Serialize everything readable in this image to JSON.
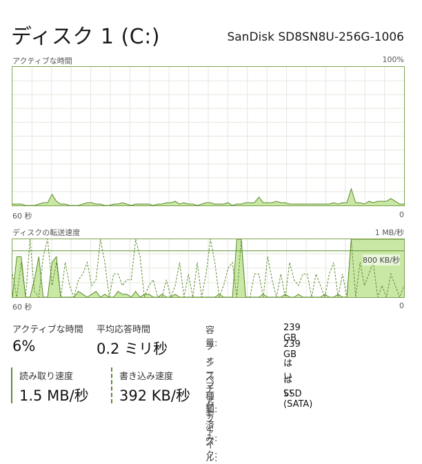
{
  "header": {
    "title": "ディスク 1 (C:)",
    "model": "SanDisk SD8SN8U-256G-1006"
  },
  "active_time_chart": {
    "label": "アクティブな時間",
    "max_label": "100%",
    "time_label": "60 秒",
    "min_label": "0",
    "series": [
      1,
      1,
      1,
      0,
      0,
      0,
      1,
      2,
      2,
      8,
      3,
      1,
      1,
      0,
      0,
      0,
      1,
      2,
      2,
      1,
      1,
      0,
      0,
      1,
      1,
      2,
      1,
      0,
      1,
      1,
      1,
      1,
      0,
      1,
      1,
      2,
      2,
      3,
      1,
      2,
      1,
      1,
      0,
      1,
      2,
      2,
      1,
      1,
      1,
      2,
      0,
      1,
      1,
      2,
      2,
      2,
      6,
      2,
      2,
      2,
      3,
      2,
      2,
      1,
      1,
      1,
      1,
      1,
      1,
      1,
      1,
      1,
      1,
      2,
      1,
      2,
      2,
      12,
      2,
      2,
      1,
      3,
      2,
      3,
      3,
      3,
      5,
      3,
      1,
      1
    ]
  },
  "transfer_chart": {
    "label": "ディスクの転送速度",
    "max_label": "1 MB/秒",
    "ref_label": "800 KB/秒",
    "time_label": "60 秒",
    "min_label": "0",
    "read_series": [
      0,
      70,
      70,
      0,
      0,
      30,
      70,
      0,
      0,
      60,
      70,
      0,
      0,
      0,
      0,
      10,
      5,
      0,
      5,
      10,
      0,
      5,
      0,
      0,
      10,
      5,
      5,
      0,
      10,
      0,
      5,
      5,
      0,
      0,
      5,
      0,
      0,
      5,
      0,
      0,
      0,
      0,
      0,
      0,
      0,
      0,
      0,
      5,
      0,
      0,
      0,
      100,
      100,
      0,
      0,
      0,
      0,
      5,
      0,
      0,
      0,
      0,
      5,
      0,
      0,
      5,
      0,
      0,
      0,
      0,
      0,
      5,
      0,
      0,
      5,
      0,
      0,
      100,
      100,
      100,
      100,
      100,
      100,
      100,
      100,
      100,
      100,
      100,
      100,
      100
    ],
    "write_series": [
      40,
      0,
      60,
      0,
      100,
      10,
      0,
      70,
      100,
      20,
      60,
      0,
      60,
      20,
      0,
      30,
      40,
      60,
      20,
      30,
      100,
      60,
      0,
      40,
      40,
      20,
      30,
      30,
      100,
      70,
      0,
      20,
      30,
      0,
      0,
      30,
      0,
      20,
      60,
      0,
      40,
      0,
      60,
      0,
      40,
      100,
      60,
      0,
      20,
      50,
      60,
      0,
      100,
      0,
      0,
      40,
      40,
      0,
      70,
      30,
      0,
      40,
      0,
      60,
      30,
      20,
      40,
      40,
      0,
      40,
      20,
      0,
      40,
      60,
      0,
      40,
      0,
      100,
      0,
      60,
      20,
      40,
      60,
      0,
      20,
      0,
      40,
      20,
      0,
      20
    ]
  },
  "stats": {
    "active_time_label": "アクティブな時間",
    "active_time_value": "6%",
    "avg_response_label": "平均応答時間",
    "avg_response_value": "0.2 ミリ秒",
    "read_speed_label": "読み取り速度",
    "read_speed_value": "1.5 MB/秒",
    "write_speed_label": "書き込み速度",
    "write_speed_value": "392 KB/秒"
  },
  "info": [
    {
      "label": "容量:",
      "value": "239 GB"
    },
    {
      "label": "フォーマット済み:",
      "value": "239 GB"
    },
    {
      "label": "システム ディスク:",
      "value": "はい"
    },
    {
      "label": "ページ ファイル:",
      "value": "はい"
    },
    {
      "label": "種類:",
      "value": "SSD (SATA)"
    }
  ],
  "colors": {
    "accent": "#5a8a2a",
    "fill": "#c9e8a6",
    "border": "#7aa24a",
    "grid": "#e3e8dc"
  }
}
